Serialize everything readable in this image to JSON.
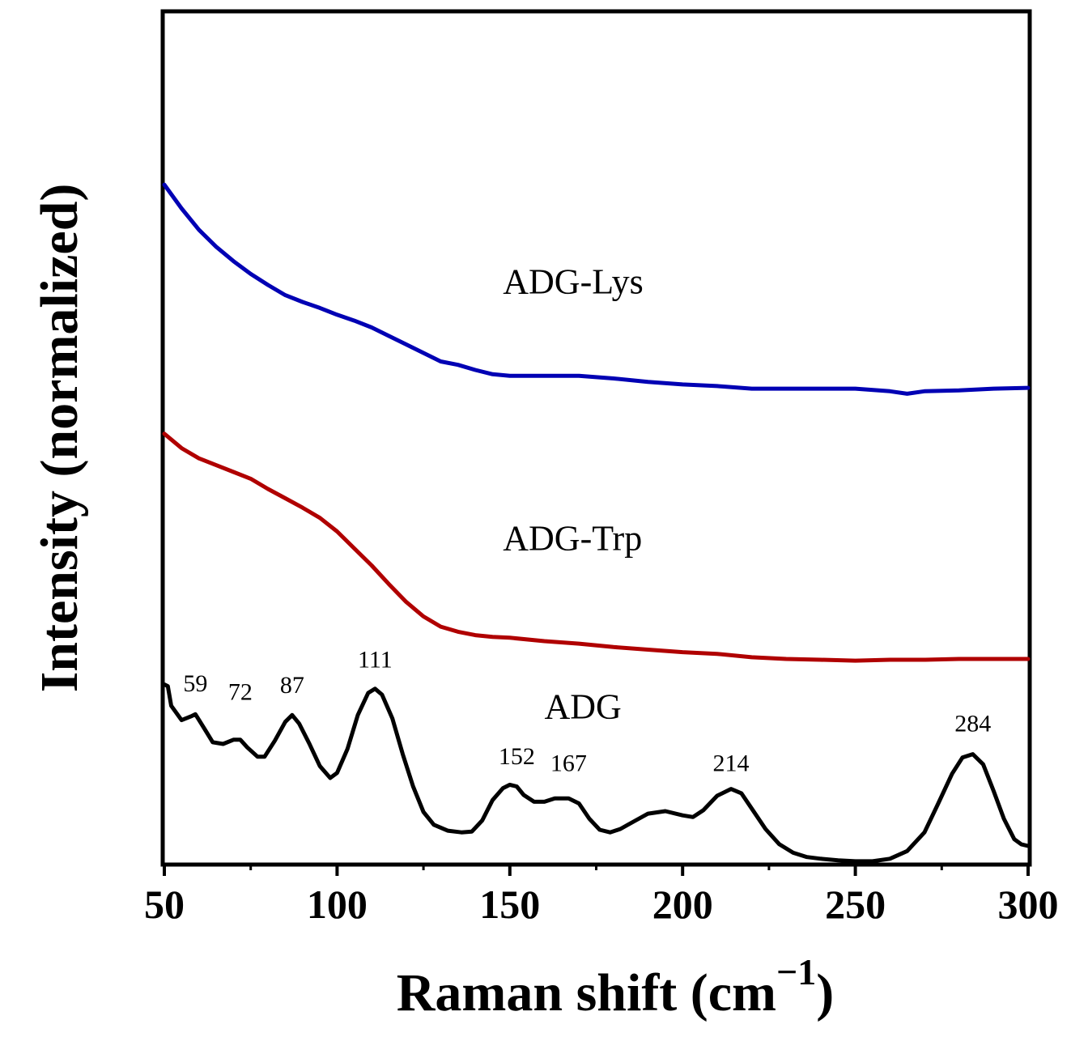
{
  "chart_data": {
    "type": "line",
    "title": "",
    "xlabel": "Raman shift (cm",
    "xlabel_superscript": "−1",
    "xlabel_close": ")",
    "ylabel": "Intensity (normalized)",
    "xlim": [
      50,
      300
    ],
    "ylim": [
      0,
      10
    ],
    "x_ticks": [
      50,
      100,
      150,
      200,
      250,
      300
    ],
    "x_tick_labels": [
      "50",
      "100",
      "150",
      "200",
      "250",
      "300"
    ],
    "y_ticks_shown": false,
    "grid": false,
    "series": [
      {
        "name": "ADG-Lys",
        "color": "#0000b4",
        "label": "ADG-Lys",
        "x": [
          50,
          55,
          60,
          65,
          70,
          75,
          80,
          85,
          90,
          95,
          100,
          105,
          110,
          115,
          120,
          125,
          130,
          135,
          140,
          145,
          150,
          160,
          170,
          180,
          190,
          200,
          210,
          220,
          230,
          240,
          250,
          260,
          265,
          270,
          280,
          290,
          300
        ],
        "values": [
          7.98,
          7.7,
          7.45,
          7.25,
          7.08,
          6.93,
          6.8,
          6.68,
          6.6,
          6.53,
          6.45,
          6.38,
          6.3,
          6.2,
          6.1,
          6.0,
          5.9,
          5.86,
          5.8,
          5.75,
          5.73,
          5.73,
          5.73,
          5.7,
          5.66,
          5.63,
          5.61,
          5.58,
          5.58,
          5.58,
          5.58,
          5.55,
          5.52,
          5.55,
          5.56,
          5.58,
          5.59
        ]
      },
      {
        "name": "ADG-Trp",
        "color": "#b00000",
        "label": "ADG-Trp",
        "x": [
          50,
          55,
          60,
          65,
          70,
          75,
          80,
          85,
          90,
          95,
          100,
          105,
          110,
          115,
          120,
          125,
          130,
          135,
          140,
          145,
          150,
          160,
          170,
          180,
          190,
          200,
          210,
          220,
          230,
          240,
          250,
          260,
          270,
          280,
          290,
          300
        ],
        "values": [
          5.05,
          4.88,
          4.76,
          4.68,
          4.6,
          4.52,
          4.4,
          4.29,
          4.18,
          4.06,
          3.9,
          3.7,
          3.5,
          3.28,
          3.07,
          2.9,
          2.78,
          2.72,
          2.68,
          2.66,
          2.65,
          2.61,
          2.58,
          2.54,
          2.51,
          2.48,
          2.46,
          2.42,
          2.4,
          2.39,
          2.38,
          2.39,
          2.39,
          2.4,
          2.4,
          2.4
        ]
      },
      {
        "name": "ADG",
        "color": "#000000",
        "label": "ADG",
        "x": [
          50,
          51,
          52,
          55,
          58,
          59,
          61,
          64,
          67,
          70,
          72,
          74,
          77,
          79,
          82,
          85,
          87,
          89,
          92,
          95,
          98,
          100,
          103,
          106,
          109,
          111,
          113,
          116,
          119,
          122,
          125,
          128,
          132,
          136,
          139,
          142,
          145,
          148,
          150,
          152,
          154,
          157,
          160,
          163,
          167,
          170,
          173,
          176,
          179,
          182,
          186,
          190,
          195,
          200,
          203,
          206,
          210,
          214,
          217,
          220,
          224,
          228,
          232,
          236,
          240,
          245,
          250,
          255,
          260,
          265,
          270,
          274,
          278,
          281,
          284,
          287,
          290,
          293,
          296,
          298,
          300
        ],
        "values": [
          2.1,
          2.08,
          1.85,
          1.68,
          1.73,
          1.75,
          1.62,
          1.42,
          1.4,
          1.45,
          1.45,
          1.36,
          1.25,
          1.25,
          1.44,
          1.66,
          1.74,
          1.64,
          1.4,
          1.14,
          1.0,
          1.06,
          1.34,
          1.74,
          2.0,
          2.05,
          1.98,
          1.7,
          1.28,
          0.9,
          0.6,
          0.45,
          0.38,
          0.36,
          0.37,
          0.5,
          0.74,
          0.88,
          0.92,
          0.9,
          0.8,
          0.72,
          0.72,
          0.76,
          0.76,
          0.7,
          0.52,
          0.39,
          0.36,
          0.4,
          0.49,
          0.58,
          0.61,
          0.56,
          0.54,
          0.62,
          0.79,
          0.87,
          0.82,
          0.64,
          0.4,
          0.22,
          0.12,
          0.07,
          0.05,
          0.03,
          0.02,
          0.02,
          0.05,
          0.14,
          0.36,
          0.7,
          1.05,
          1.24,
          1.28,
          1.16,
          0.85,
          0.52,
          0.28,
          0.22,
          0.2
        ]
      }
    ],
    "peak_labels": [
      {
        "x": 59,
        "text": "59",
        "y": 2.02
      },
      {
        "x": 72,
        "text": "72",
        "y": 1.92
      },
      {
        "x": 87,
        "text": "87",
        "y": 2.0
      },
      {
        "x": 111,
        "text": "111",
        "y": 2.3
      },
      {
        "x": 152,
        "text": "152",
        "y": 1.16
      },
      {
        "x": 167,
        "text": "167",
        "y": 1.08
      },
      {
        "x": 214,
        "text": "214",
        "y": 1.08
      },
      {
        "x": 284,
        "text": "284",
        "y": 1.55
      }
    ],
    "series_text_positions": [
      {
        "text": "ADG-Lys",
        "x": 148,
        "y": 6.7
      },
      {
        "text": "ADG-Trp",
        "x": 148,
        "y": 3.68
      },
      {
        "text": "ADG",
        "x": 160,
        "y": 1.7
      }
    ]
  }
}
